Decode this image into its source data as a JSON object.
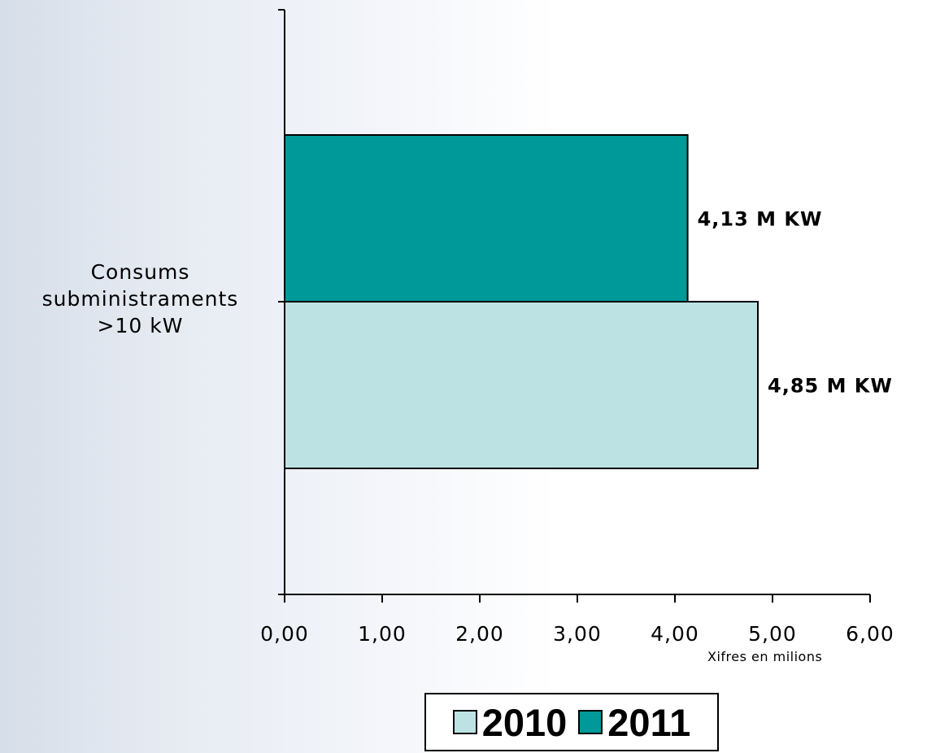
{
  "chart_data": {
    "type": "bar",
    "orientation": "horizontal",
    "categories": [
      "Consums subministraments >10 kW"
    ],
    "category_label_lines": [
      "Consums",
      "subministraments",
      ">10 kW"
    ],
    "series": [
      {
        "name": "2011",
        "values": [
          4.13
        ],
        "color": "#009999",
        "data_label": "4,13 M KW"
      },
      {
        "name": "2010",
        "values": [
          4.85
        ],
        "color": "#bde2e4",
        "data_label": "4,85 M KW"
      }
    ],
    "xlabel": "Xifres en milions",
    "xlim": [
      0,
      6
    ],
    "xticks": [
      0,
      1,
      2,
      3,
      4,
      5,
      6
    ],
    "xtick_labels": [
      "0,00",
      "1,00",
      "2,00",
      "3,00",
      "4,00",
      "5,00",
      "6,00"
    ],
    "grid": false,
    "legend": {
      "position": "bottom",
      "entries": [
        {
          "label": "2010",
          "color": "#bde2e4"
        },
        {
          "label": "2011",
          "color": "#009999"
        }
      ]
    }
  }
}
